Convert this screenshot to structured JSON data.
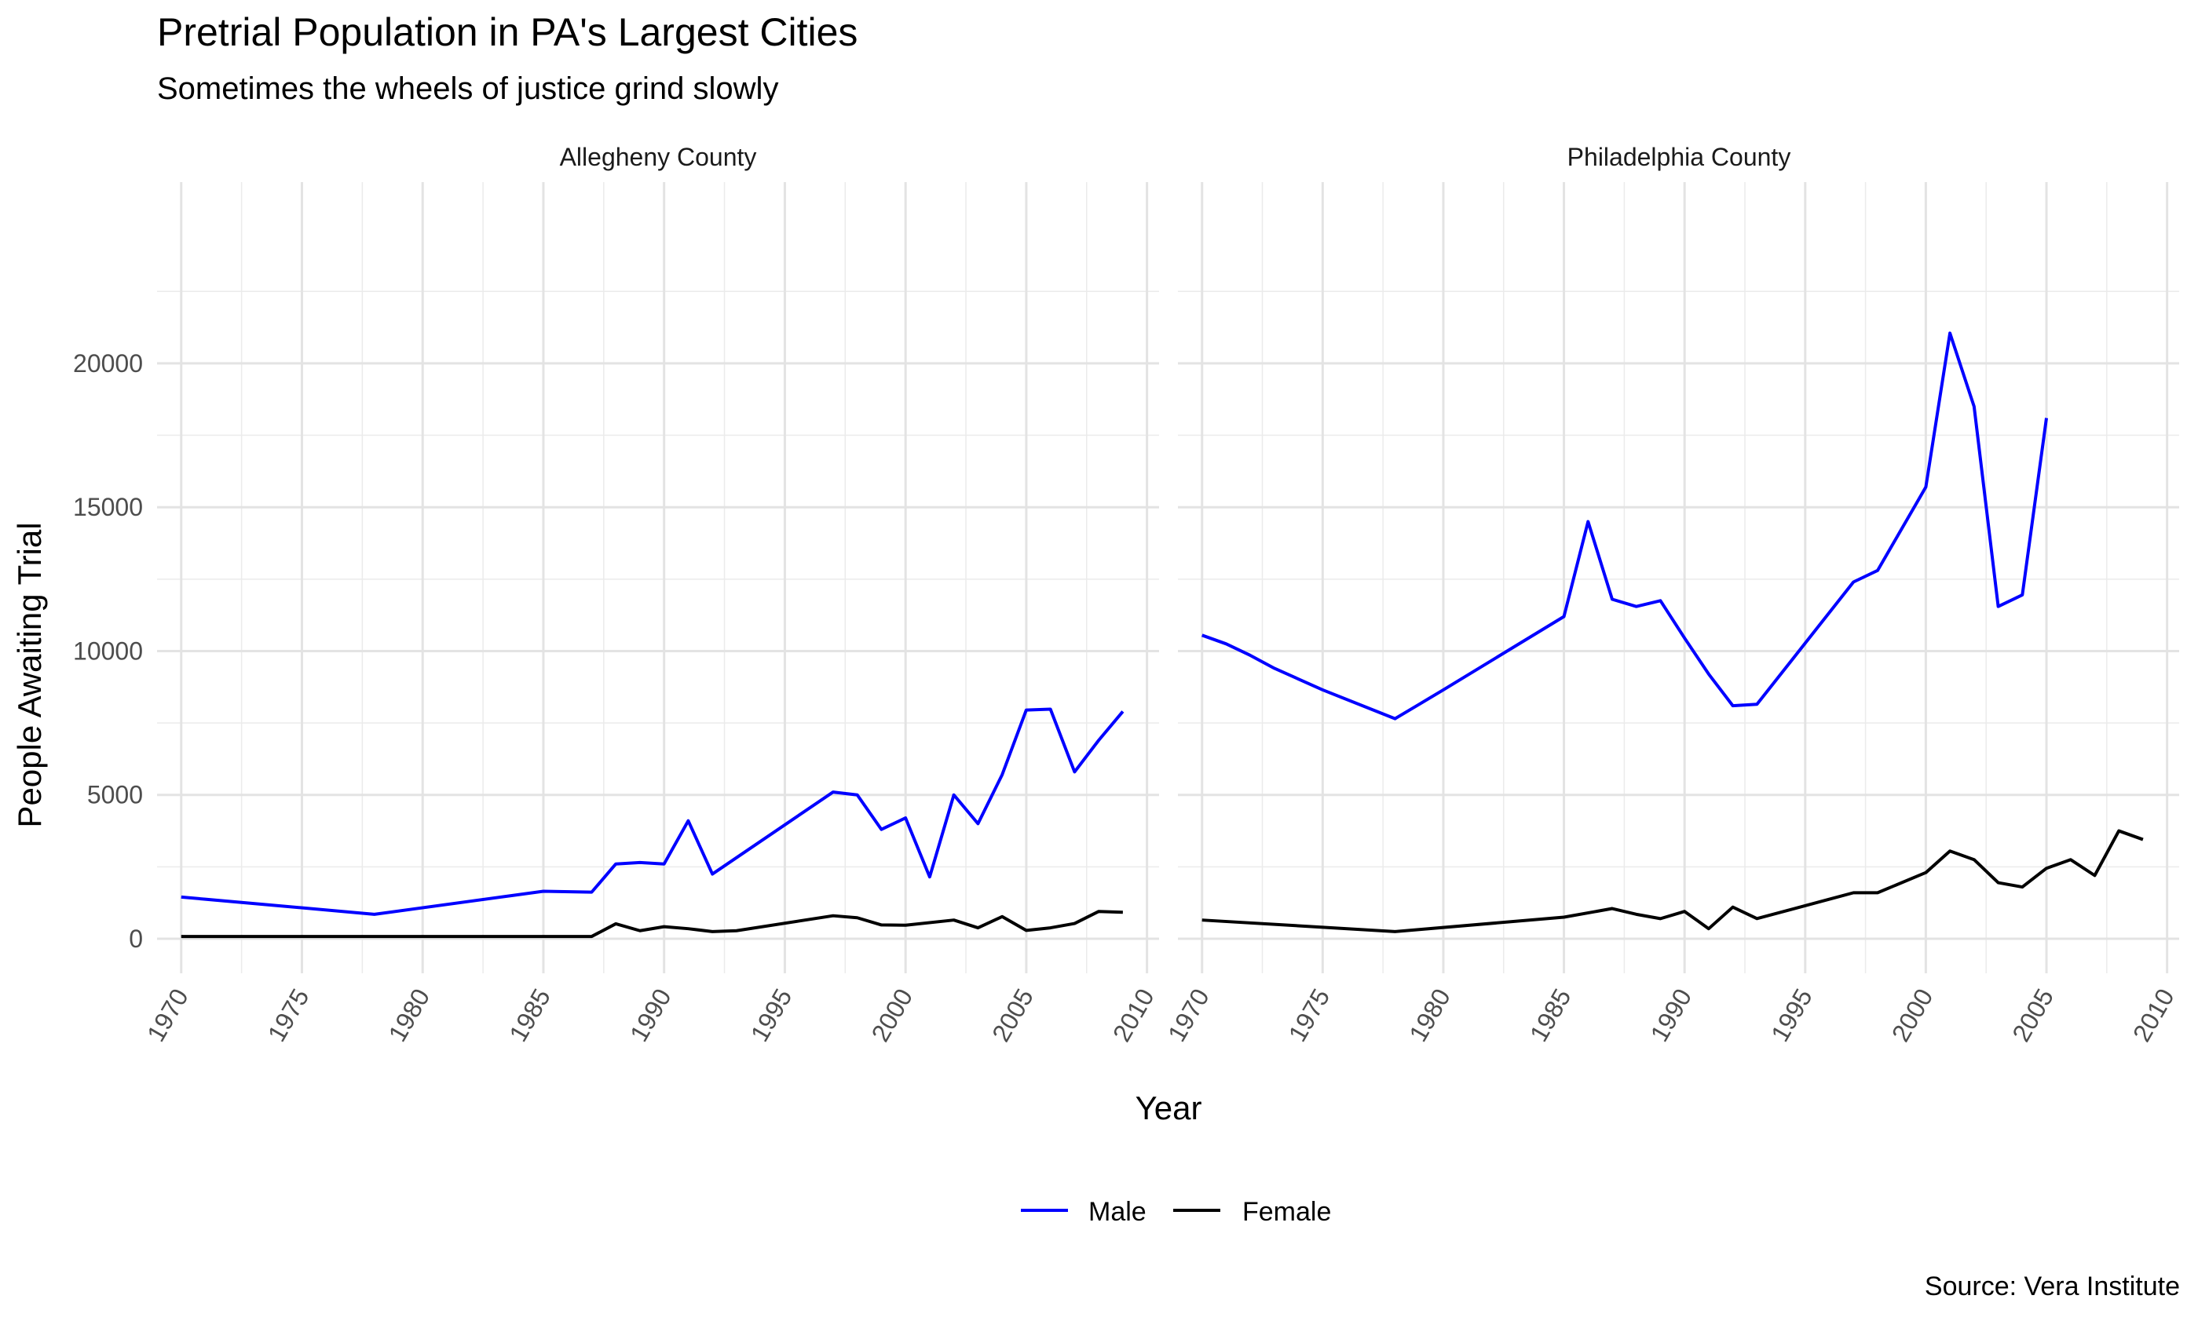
{
  "chart_data": {
    "type": "line",
    "title": "Pretrial Population in PA's Largest Cities",
    "subtitle": "Sometimes the wheels of justice grind slowly",
    "caption": "Source: Vera Institute",
    "xlabel": "Year",
    "ylabel": "People Awaiting Trial",
    "xlim": [
      1969,
      2010.5
    ],
    "ylim": [
      -1200,
      26300
    ],
    "x_ticks": [
      1970,
      1975,
      1980,
      1985,
      1990,
      1995,
      2000,
      2005,
      2010
    ],
    "y_ticks": [
      0,
      5000,
      10000,
      15000,
      20000
    ],
    "grid": true,
    "legend_position": "bottom",
    "legend": [
      {
        "label": "Male",
        "color": "#0000ff"
      },
      {
        "label": "Female",
        "color": "#000000"
      }
    ],
    "panels": [
      {
        "title": "Allegheny County",
        "series": [
          {
            "name": "Male",
            "color": "#0000ff",
            "points": [
              [
                1970,
                1450
              ],
              [
                1978,
                850
              ],
              [
                1985,
                1650
              ],
              [
                1987,
                1620
              ],
              [
                1988,
                2600
              ],
              [
                1989,
                2650
              ],
              [
                1990,
                2600
              ],
              [
                1991,
                4100
              ],
              [
                1992,
                2250
              ],
              [
                1997,
                5100
              ],
              [
                1998,
                5000
              ],
              [
                1999,
                3800
              ],
              [
                2000,
                4200
              ],
              [
                2001,
                2150
              ],
              [
                2002,
                5000
              ],
              [
                2003,
                4000
              ],
              [
                2004,
                5700
              ],
              [
                2005,
                7950
              ],
              [
                2006,
                7980
              ],
              [
                2007,
                5800
              ],
              [
                2008,
                6900
              ],
              [
                2009,
                7900
              ]
            ]
          },
          {
            "name": "Female",
            "color": "#000000",
            "points": [
              [
                1970,
                80
              ],
              [
                1987,
                80
              ],
              [
                1988,
                520
              ],
              [
                1989,
                280
              ],
              [
                1990,
                420
              ],
              [
                1991,
                350
              ],
              [
                1992,
                250
              ],
              [
                1993,
                280
              ],
              [
                1997,
                800
              ],
              [
                1998,
                730
              ],
              [
                1999,
                480
              ],
              [
                2000,
                470
              ],
              [
                2002,
                650
              ],
              [
                2003,
                380
              ],
              [
                2004,
                770
              ],
              [
                2005,
                290
              ],
              [
                2006,
                380
              ],
              [
                2007,
                530
              ],
              [
                2008,
                950
              ],
              [
                2009,
                920
              ]
            ]
          }
        ]
      },
      {
        "title": "Philadelphia County",
        "series": [
          {
            "name": "Male",
            "color": "#0000ff",
            "points": [
              [
                1970,
                10550
              ],
              [
                1971,
                10250
              ],
              [
                1972,
                9850
              ],
              [
                1973,
                9400
              ],
              [
                1975,
                8650
              ],
              [
                1978,
                7650
              ],
              [
                1979,
                8150
              ],
              [
                1980,
                8650
              ],
              [
                1985,
                11200
              ],
              [
                1986,
                14500
              ],
              [
                1987,
                11800
              ],
              [
                1988,
                11550
              ],
              [
                1989,
                11750
              ],
              [
                1990,
                10450
              ],
              [
                1991,
                9200
              ],
              [
                1992,
                8100
              ],
              [
                1993,
                8150
              ],
              [
                1997,
                12400
              ],
              [
                1998,
                12800
              ],
              [
                2000,
                15700
              ],
              [
                2001,
                21050
              ],
              [
                2002,
                18500
              ],
              [
                2003,
                11550
              ],
              [
                2004,
                11950
              ],
              [
                2005,
                18100
              ]
            ]
          },
          {
            "name": "Female",
            "color": "#000000",
            "points": [
              [
                1970,
                650
              ],
              [
                1978,
                250
              ],
              [
                1985,
                750
              ],
              [
                1987,
                1050
              ],
              [
                1988,
                850
              ],
              [
                1989,
                700
              ],
              [
                1990,
                950
              ],
              [
                1991,
                350
              ],
              [
                1992,
                1100
              ],
              [
                1993,
                700
              ],
              [
                1997,
                1600
              ],
              [
                1998,
                1600
              ],
              [
                2000,
                2300
              ],
              [
                2001,
                3050
              ],
              [
                2002,
                2750
              ],
              [
                2003,
                1950
              ],
              [
                2004,
                1800
              ],
              [
                2005,
                2450
              ],
              [
                2006,
                2750
              ],
              [
                2007,
                2200
              ],
              [
                2008,
                3750
              ],
              [
                2009,
                3450
              ]
            ]
          }
        ]
      }
    ]
  }
}
